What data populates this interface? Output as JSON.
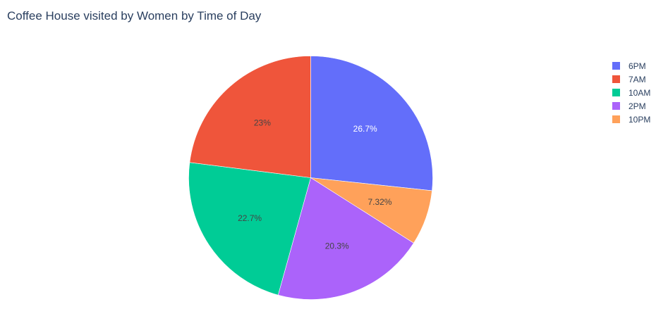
{
  "chart_data": {
    "type": "pie",
    "title": "Coffee House visited by Women by Time of Day",
    "categories": [
      "6PM",
      "7AM",
      "10AM",
      "2PM",
      "10PM"
    ],
    "values": [
      26.7,
      23.0,
      22.7,
      20.3,
      7.32
    ],
    "labels": [
      "26.7%",
      "23%",
      "22.7%",
      "20.3%",
      "7.32%"
    ],
    "slice_order": [
      "6PM",
      "10PM",
      "2PM",
      "10AM",
      "7AM"
    ],
    "direction": "clockwise",
    "start_angle": "top",
    "legend": {
      "position": "top-right",
      "entries": [
        "6PM",
        "7AM",
        "10AM",
        "2PM",
        "10PM"
      ]
    },
    "colors": {
      "6PM": "#636efa",
      "7AM": "#ef553b",
      "10AM": "#00cc96",
      "2PM": "#ab63fa",
      "10PM": "#ffa15a"
    },
    "label_text_colors": {
      "6PM": "#ffffff",
      "7AM": "#444444",
      "10AM": "#444444",
      "2PM": "#444444",
      "10PM": "#444444"
    }
  }
}
